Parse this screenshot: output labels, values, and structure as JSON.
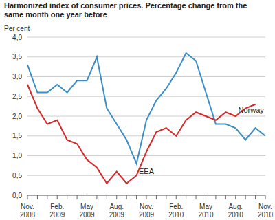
{
  "chart_data": {
    "type": "line",
    "title": "Harmonized index of consumer prices. Percentage change from the same month one year before",
    "y_label": "Per cent",
    "categories": [
      "Nov. 2008",
      null,
      null,
      "Feb. 2009",
      null,
      null,
      "May 2009",
      null,
      null,
      "Aug. 2009",
      null,
      null,
      "Nov. 2009",
      null,
      null,
      "Feb. 2010",
      null,
      null,
      "May 2010",
      null,
      null,
      "Aug. 2010",
      null,
      null,
      "Nov. 2010"
    ],
    "series": [
      {
        "name": "Norway",
        "color": "#3a8ec6",
        "values": [
          3.3,
          2.6,
          2.6,
          2.8,
          2.6,
          2.9,
          2.9,
          3.5,
          2.2,
          1.8,
          1.4,
          0.8,
          1.9,
          2.4,
          2.7,
          3.1,
          3.6,
          3.4,
          2.6,
          1.8,
          1.8,
          1.7,
          1.4,
          1.7,
          1.5
        ]
      },
      {
        "name": "EEA",
        "color": "#d62a2a",
        "values": [
          2.8,
          2.2,
          1.8,
          1.9,
          1.4,
          1.3,
          0.9,
          0.7,
          0.3,
          0.6,
          0.3,
          0.5,
          1.1,
          1.6,
          1.7,
          1.5,
          1.9,
          2.1,
          2.0,
          1.9,
          2.1,
          2.0,
          2.2,
          2.3,
          null
        ]
      }
    ],
    "ylim": [
      0,
      4
    ],
    "yticks": [
      {
        "value": 0,
        "label": "0,0"
      },
      {
        "value": 0.5,
        "label": "0,5"
      },
      {
        "value": 1,
        "label": "1,0"
      },
      {
        "value": 1.5,
        "label": "1,5"
      },
      {
        "value": 2,
        "label": "2,0"
      },
      {
        "value": 2.5,
        "label": "2,5"
      },
      {
        "value": 3,
        "label": "3,0"
      },
      {
        "value": 3.5,
        "label": "3,5"
      },
      {
        "value": 4,
        "label": "4,0"
      }
    ],
    "grid": true
  }
}
